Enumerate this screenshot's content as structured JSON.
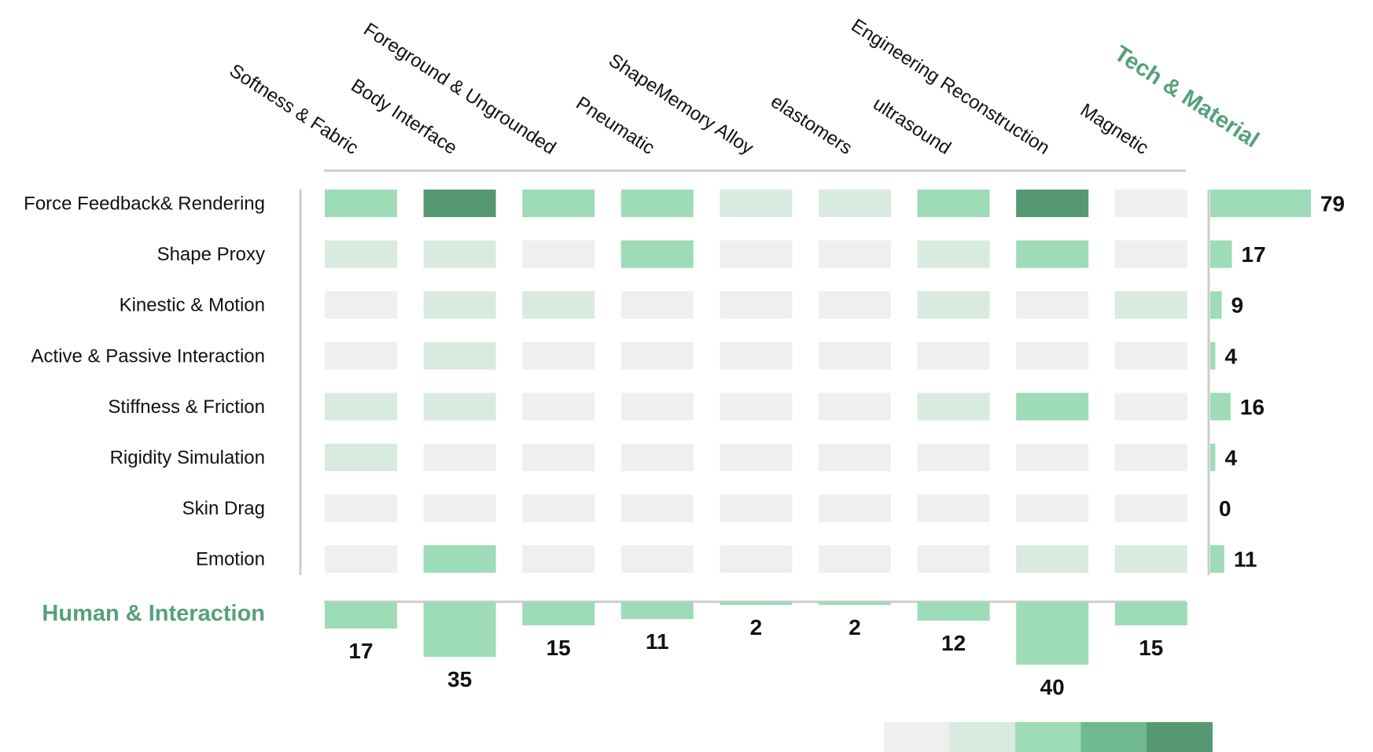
{
  "chart_data": {
    "type": "heatmap",
    "column_axis_title": "Tech & Material",
    "row_axis_title": "Human & Interaction",
    "columns": [
      "Softness & Fabric",
      "Body Interface",
      "Foreground & Ungrounded",
      "Pneumatic",
      "ShapeMemory Alloy",
      "elastomers",
      "ultrasound",
      "Engineering Reconstruction",
      "Magnetic"
    ],
    "rows": [
      "Force Feedback& Rendering",
      "Shape Proxy",
      "Kinestic & Motion",
      "Active & Passive Interaction",
      "Stiffness & Friction",
      "Rigidity Simulation",
      "Skin Drag",
      "Emotion"
    ],
    "cell_levels": [
      [
        2,
        4,
        2,
        2,
        1,
        1,
        2,
        4,
        0
      ],
      [
        1,
        1,
        0,
        2,
        0,
        0,
        1,
        2,
        0
      ],
      [
        0,
        1,
        1,
        0,
        0,
        0,
        1,
        0,
        1
      ],
      [
        0,
        1,
        0,
        0,
        0,
        0,
        0,
        0,
        0
      ],
      [
        1,
        1,
        0,
        0,
        0,
        0,
        1,
        2,
        0
      ],
      [
        1,
        0,
        0,
        0,
        0,
        0,
        0,
        0,
        0
      ],
      [
        0,
        0,
        0,
        0,
        0,
        0,
        0,
        0,
        0
      ],
      [
        0,
        2,
        0,
        0,
        0,
        0,
        0,
        1,
        1
      ]
    ],
    "row_totals": [
      79,
      17,
      9,
      4,
      16,
      4,
      0,
      11
    ],
    "column_totals": [
      17,
      35,
      15,
      11,
      2,
      2,
      12,
      40,
      15
    ],
    "color_scale": [
      "#efefef",
      "#d9ebe0",
      "#9ddcb6",
      "#70b990",
      "#569872"
    ],
    "bar_color": "#9ddcb6",
    "accent_color": "#56a07a",
    "axis_line_color": "#cccccc"
  }
}
